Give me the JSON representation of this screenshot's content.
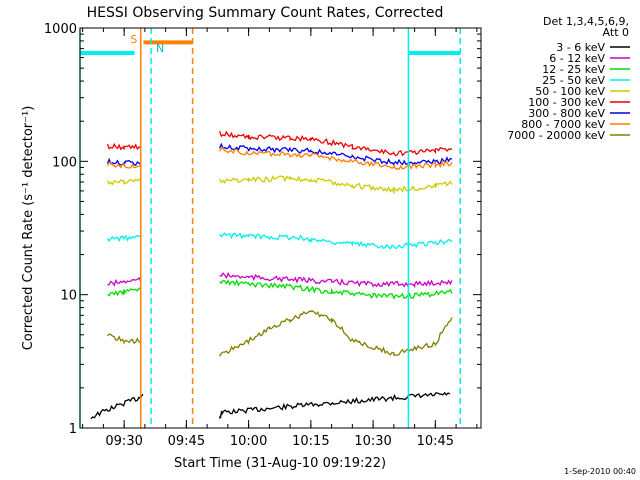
{
  "chart_data": {
    "type": "line",
    "title": "HESSI Observing Summary Count Rates, Corrected",
    "xlabel": "Start Time (31-Aug-10 09:19:22)",
    "ylabel": "Corrected Count Rate (s⁻¹ detector⁻¹)",
    "y_scale": "log",
    "ylim": [
      1,
      1000
    ],
    "xlim": [
      "09:19:22",
      "10:56:00"
    ],
    "x_ticks": [
      "09:30",
      "09:45",
      "10:00",
      "10:15",
      "10:30",
      "10:45"
    ],
    "y_ticks": [
      "1",
      "10",
      "100",
      "1000"
    ],
    "legend_placement": "right",
    "legend_header": [
      "Det 1,3,4,5,6,9,",
      "Att 0"
    ],
    "timestamp": "1-Sep-2010 00:40",
    "series": [
      {
        "name": "3 - 6 keV",
        "color": "#000000",
        "x": [
          "09:22:00",
          "09:34:00",
          "09:34:30",
          "09:53:00",
          "09:53:30",
          "10:48:30"
        ],
        "y": [
          1.2,
          1.7,
          1.8,
          1.2,
          1.3,
          1.8
        ]
      },
      {
        "name": "6 - 12 keV",
        "color": "#cc00cc",
        "x": [
          "09:26:00",
          "09:30:00",
          "09:34:00",
          "09:53:00",
          "10:00:00",
          "10:10:00",
          "10:20:00",
          "10:30:00",
          "10:40:00",
          "10:49:00"
        ],
        "y": [
          12,
          12.5,
          13,
          14,
          13.5,
          13,
          12.5,
          12,
          12,
          12.5
        ]
      },
      {
        "name": "12 - 25 keV",
        "color": "#00dd00",
        "x": [
          "09:26:00",
          "09:30:00",
          "09:34:00",
          "09:53:00",
          "10:00:00",
          "10:10:00",
          "10:20:00",
          "10:30:00",
          "10:40:00",
          "10:49:00"
        ],
        "y": [
          10,
          10.5,
          11,
          12.5,
          12,
          11.5,
          10.5,
          9.8,
          9.8,
          10.5
        ]
      },
      {
        "name": "25 - 50 keV",
        "color": "#00eeee",
        "x": [
          "09:26:00",
          "09:30:00",
          "09:34:00",
          "09:53:00",
          "10:00:00",
          "10:10:00",
          "10:15:00",
          "10:25:00",
          "10:35:00",
          "10:45:00",
          "10:49:00"
        ],
        "y": [
          26,
          26.5,
          27,
          28,
          27.5,
          27,
          26,
          24,
          23,
          24.5,
          25.5
        ]
      },
      {
        "name": "50 - 100 keV",
        "color": "#cccc00",
        "x": [
          "09:26:00",
          "09:30:00",
          "09:34:00",
          "09:53:00",
          "10:00:00",
          "10:10:00",
          "10:15:00",
          "10:25:00",
          "10:35:00",
          "10:45:00",
          "10:49:00"
        ],
        "y": [
          70,
          70,
          72,
          72,
          72,
          75,
          73,
          66,
          61,
          65,
          68
        ]
      },
      {
        "name": "100 - 300 keV",
        "color": "#ee0000",
        "x": [
          "09:26:00",
          "09:30:00",
          "09:34:00",
          "09:53:00",
          "10:00:00",
          "10:10:00",
          "10:15:00",
          "10:25:00",
          "10:35:00",
          "10:45:00",
          "10:49:00"
        ],
        "y": [
          130,
          128,
          128,
          162,
          152,
          150,
          148,
          128,
          114,
          120,
          125
        ]
      },
      {
        "name": "300 - 800 keV",
        "color": "#0000ee",
        "x": [
          "09:26:00",
          "09:30:00",
          "09:34:00",
          "09:53:00",
          "10:00:00",
          "10:10:00",
          "10:15:00",
          "10:25:00",
          "10:35:00",
          "10:45:00",
          "10:49:00"
        ],
        "y": [
          100,
          97,
          97,
          130,
          124,
          122,
          120,
          108,
          98,
          100,
          103
        ]
      },
      {
        "name": "800 - 7000 keV",
        "color": "#ff7f00",
        "x": [
          "09:26:00",
          "09:30:00",
          "09:34:00",
          "09:53:00",
          "10:00:00",
          "10:10:00",
          "10:15:00",
          "10:25:00",
          "10:35:00",
          "10:45:00",
          "10:49:00"
        ],
        "y": [
          95,
          92,
          93,
          122,
          115,
          113,
          111,
          100,
          90,
          94,
          97
        ]
      },
      {
        "name": "7000 - 20000 keV",
        "color": "#808000",
        "x": [
          "09:26:00",
          "09:30:00",
          "09:34:00",
          "09:53:00",
          "10:00:00",
          "10:05:00",
          "10:10:00",
          "10:15:00",
          "10:20:00",
          "10:25:00",
          "10:35:00",
          "10:45:00",
          "10:49:00"
        ],
        "y": [
          5,
          4.5,
          4.5,
          3.5,
          4.5,
          5.5,
          6.5,
          7.5,
          6.5,
          4.5,
          3.6,
          4.3,
          6.5
        ]
      }
    ],
    "flag_bars": [
      {
        "label": "",
        "color": "#00eeee",
        "x_start": "09:19:22",
        "x_end": "09:32:30",
        "y": 650
      },
      {
        "label": "S",
        "color": "#ff7f00",
        "x_start": "09:34:40",
        "x_end": "09:46:30",
        "y": 780
      },
      {
        "label": "N",
        "color": "#00eeee",
        "x_start": "",
        "x_end": "",
        "y": 650
      },
      {
        "label": "",
        "color": "#00eeee",
        "x_start": "10:38:30",
        "x_end": "10:51:00",
        "y": 650
      }
    ],
    "marker_lines": [
      {
        "x": "09:19:22",
        "color": "#00eeee",
        "style": "solid"
      },
      {
        "x": "09:34:00",
        "color": "#ff7f00",
        "style": "solid"
      },
      {
        "x": "09:36:30",
        "color": "#00eeee",
        "style": "dashed"
      },
      {
        "x": "09:46:30",
        "color": "#ff7f00",
        "style": "dashed"
      },
      {
        "x": "10:38:30",
        "color": "#00eeee",
        "style": "solid"
      },
      {
        "x": "10:51:00",
        "color": "#00eeee",
        "style": "dashed"
      }
    ]
  }
}
